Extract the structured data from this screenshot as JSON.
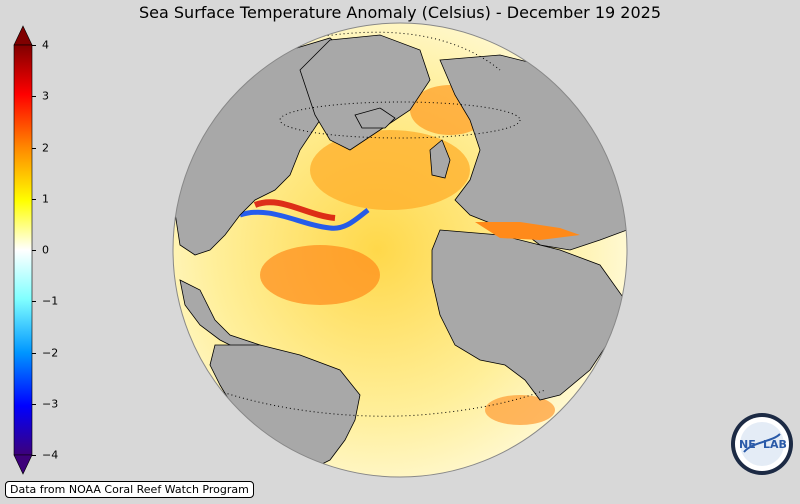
{
  "map": {
    "title": "Sea Surface Temperature Anomaly (Celsius) - December 19 2025",
    "projection": "orthographic",
    "center_region": "Atlantic Ocean"
  },
  "colorbar": {
    "ticks": [
      "4",
      "3",
      "2",
      "1",
      "0",
      "−1",
      "−2",
      "−3",
      "−4"
    ],
    "min": -4,
    "max": 4,
    "colors": [
      "#3d007a",
      "#0000ff",
      "#00a0ff",
      "#ffffff",
      "#ffff00",
      "#ff9900",
      "#ff0000",
      "#800000"
    ]
  },
  "attribution": "Data from NOAA Coral Reef Watch Program",
  "logo": {
    "text_left": "NE",
    "text_right": "LAB"
  },
  "colors": {
    "background": "#d8d8d8",
    "land": "#a8a8a8",
    "warm": "#ff9900",
    "hot": "#cc0000",
    "cool": "#0055ff"
  }
}
